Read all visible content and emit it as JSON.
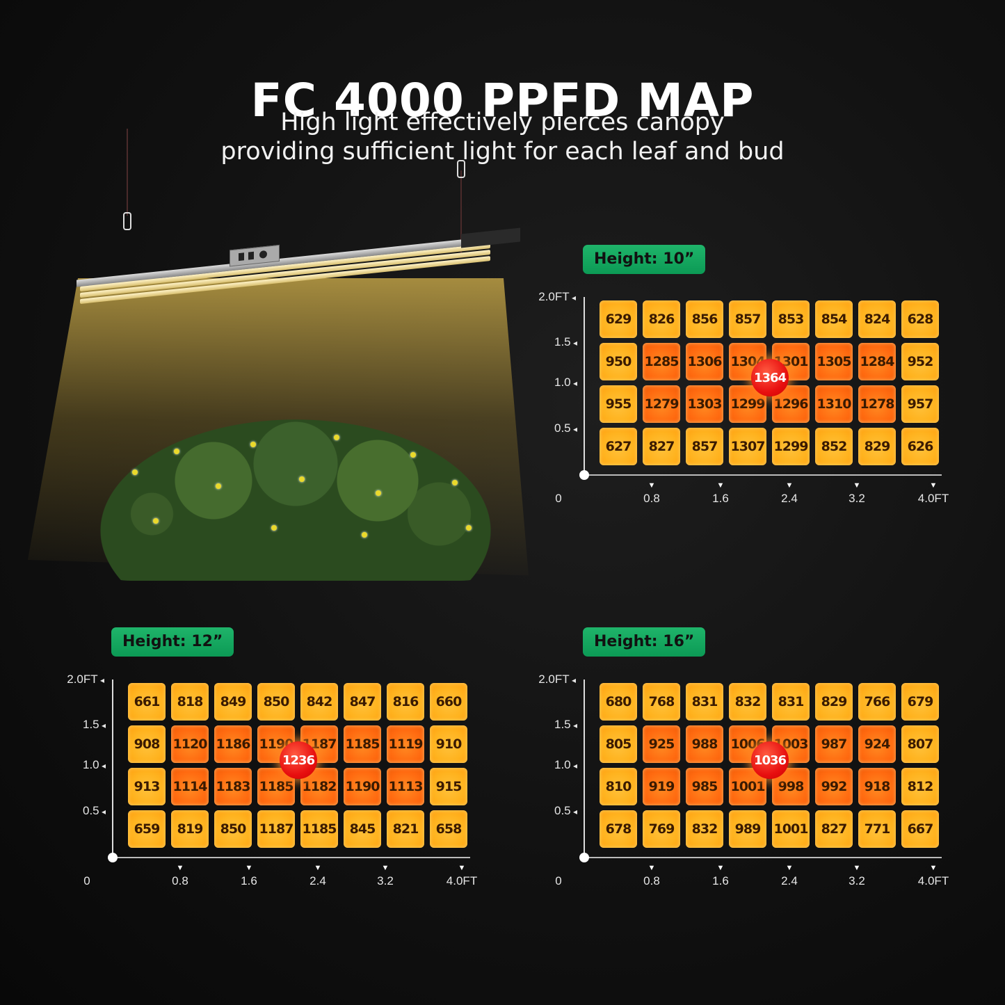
{
  "header": {
    "title": "FC 4000 PPFD MAP",
    "subtitle_line1": "High light effectively pierces canopy",
    "subtitle_line2": "providing sufficient light for each leaf and bud"
  },
  "colors": {
    "background": "#111111",
    "badge": "#12a95e",
    "cell_normal": "#ffb31f",
    "cell_high": "#ff6a10",
    "peak": "#e81010"
  },
  "axes": {
    "y_labels": [
      "2.0FT",
      "1.5",
      "1.0",
      "0.5"
    ],
    "x_labels": [
      "0",
      "0.8",
      "1.6",
      "2.4",
      "3.2",
      "4.0FT"
    ]
  },
  "chart_data": [
    {
      "type": "heatmap",
      "title": "Height: 10”",
      "xlabel": "FT",
      "ylabel": "FT",
      "x_ticks": [
        "0",
        "0.8",
        "1.6",
        "2.4",
        "3.2",
        "4.0FT"
      ],
      "y_ticks": [
        "2.0FT",
        "1.5",
        "1.0",
        "0.5"
      ],
      "xlim": [
        0,
        4.0
      ],
      "ylim": [
        0,
        2.0
      ],
      "rows": [
        [
          629,
          826,
          856,
          857,
          853,
          854,
          824,
          628
        ],
        [
          950,
          1285,
          1306,
          1304,
          1301,
          1305,
          1284,
          952
        ],
        [
          955,
          1279,
          1303,
          1299,
          1296,
          1310,
          1278,
          957
        ],
        [
          627,
          827,
          857,
          1307,
          1299,
          852,
          829,
          626
        ]
      ],
      "peak": 1364
    },
    {
      "type": "heatmap",
      "title": "Height: 12”",
      "xlabel": "FT",
      "ylabel": "FT",
      "x_ticks": [
        "0",
        "0.8",
        "1.6",
        "2.4",
        "3.2",
        "4.0FT"
      ],
      "y_ticks": [
        "2.0FT",
        "1.5",
        "1.0",
        "0.5"
      ],
      "xlim": [
        0,
        4.0
      ],
      "ylim": [
        0,
        2.0
      ],
      "rows": [
        [
          661,
          818,
          849,
          850,
          842,
          847,
          816,
          660
        ],
        [
          908,
          1120,
          1186,
          1190,
          1187,
          1185,
          1119,
          910
        ],
        [
          913,
          1114,
          1183,
          1185,
          1182,
          1190,
          1113,
          915
        ],
        [
          659,
          819,
          850,
          1187,
          1185,
          845,
          821,
          658
        ]
      ],
      "peak": 1236
    },
    {
      "type": "heatmap",
      "title": "Height: 16”",
      "xlabel": "FT",
      "ylabel": "FT",
      "x_ticks": [
        "0",
        "0.8",
        "1.6",
        "2.4",
        "3.2",
        "4.0FT"
      ],
      "y_ticks": [
        "2.0FT",
        "1.5",
        "1.0",
        "0.5"
      ],
      "xlim": [
        0,
        4.0
      ],
      "ylim": [
        0,
        2.0
      ],
      "rows": [
        [
          680,
          768,
          831,
          832,
          831,
          829,
          766,
          679
        ],
        [
          805,
          925,
          988,
          1006,
          1003,
          987,
          924,
          807
        ],
        [
          810,
          919,
          985,
          1001,
          998,
          992,
          918,
          812
        ],
        [
          678,
          769,
          832,
          989,
          1001,
          827,
          771,
          667
        ]
      ],
      "peak": 1036
    }
  ]
}
